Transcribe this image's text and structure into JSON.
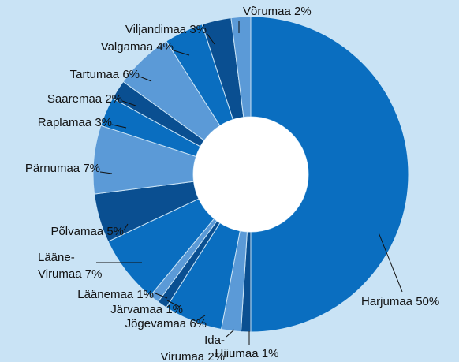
{
  "chart_data": {
    "type": "donut",
    "categories": [
      "Harjumaa",
      "Hiiumaa",
      "Ida-Virumaa",
      "Jõgevamaa",
      "Järvamaa",
      "Läänemaa",
      "Lääne-Virumaa",
      "Põlvamaa",
      "Pärnumaa",
      "Raplamaa",
      "Saaremaa",
      "Tartumaa",
      "Valgamaa",
      "Viljandimaa",
      "Võrumaa"
    ],
    "values": [
      50,
      1,
      2,
      6,
      1,
      1,
      7,
      5,
      7,
      3,
      2,
      6,
      4,
      3,
      2
    ],
    "value_labels": [
      "50%",
      "1%",
      "2%",
      "6%",
      "1%",
      "1%",
      "7%",
      "5%",
      "7%",
      "3%",
      "2%",
      "6%",
      "4%",
      "3%",
      "2%"
    ],
    "colors": [
      "#0a6ec0",
      "#0a4f91",
      "#5b9ad7",
      "#0a6ec0",
      "#0a4f91",
      "#5b9ad7",
      "#0a6ec0",
      "#0a4f91",
      "#5b9ad7",
      "#0a6ec0",
      "#0a4f91",
      "#5b9ad7",
      "#0a6ec0",
      "#0a4f91",
      "#5b9ad7"
    ]
  }
}
